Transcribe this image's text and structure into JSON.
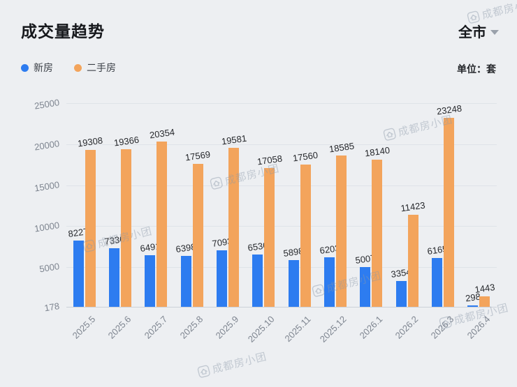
{
  "header": {
    "title": "成交量趋势",
    "region": "全市"
  },
  "legend": {
    "items": [
      {
        "label": "新房",
        "color": "#2d7cf0"
      },
      {
        "label": "二手房",
        "color": "#f3a45c"
      }
    ],
    "unit": "单位：套"
  },
  "watermark": {
    "text": "成都房小团"
  },
  "chart_data": {
    "type": "bar",
    "title": "成交量趋势",
    "unit": "套",
    "categories": [
      "2025.5",
      "2025.6",
      "2025.7",
      "2025.8",
      "2025.9",
      "2025.10",
      "2025.11",
      "2025.12",
      "2026.1",
      "2026.2",
      "2026.3",
      "2026.4"
    ],
    "series": [
      {
        "name": "新房",
        "color": "#2d7cf0",
        "values": [
          8227,
          7336,
          6491,
          6398,
          7093,
          6536,
          5898,
          6203,
          5007,
          3354,
          6165,
          298
        ]
      },
      {
        "name": "二手房",
        "color": "#f3a45c",
        "values": [
          19308,
          19366,
          20354,
          17569,
          19581,
          17058,
          17560,
          18585,
          18140,
          11423,
          23248,
          1443
        ]
      }
    ],
    "yticks": [
      178,
      5000,
      10000,
      15000,
      20000,
      25000
    ],
    "ylim": [
      178,
      25000
    ],
    "grid": true,
    "legend_position": "top-left",
    "xlabel": "",
    "ylabel": ""
  }
}
